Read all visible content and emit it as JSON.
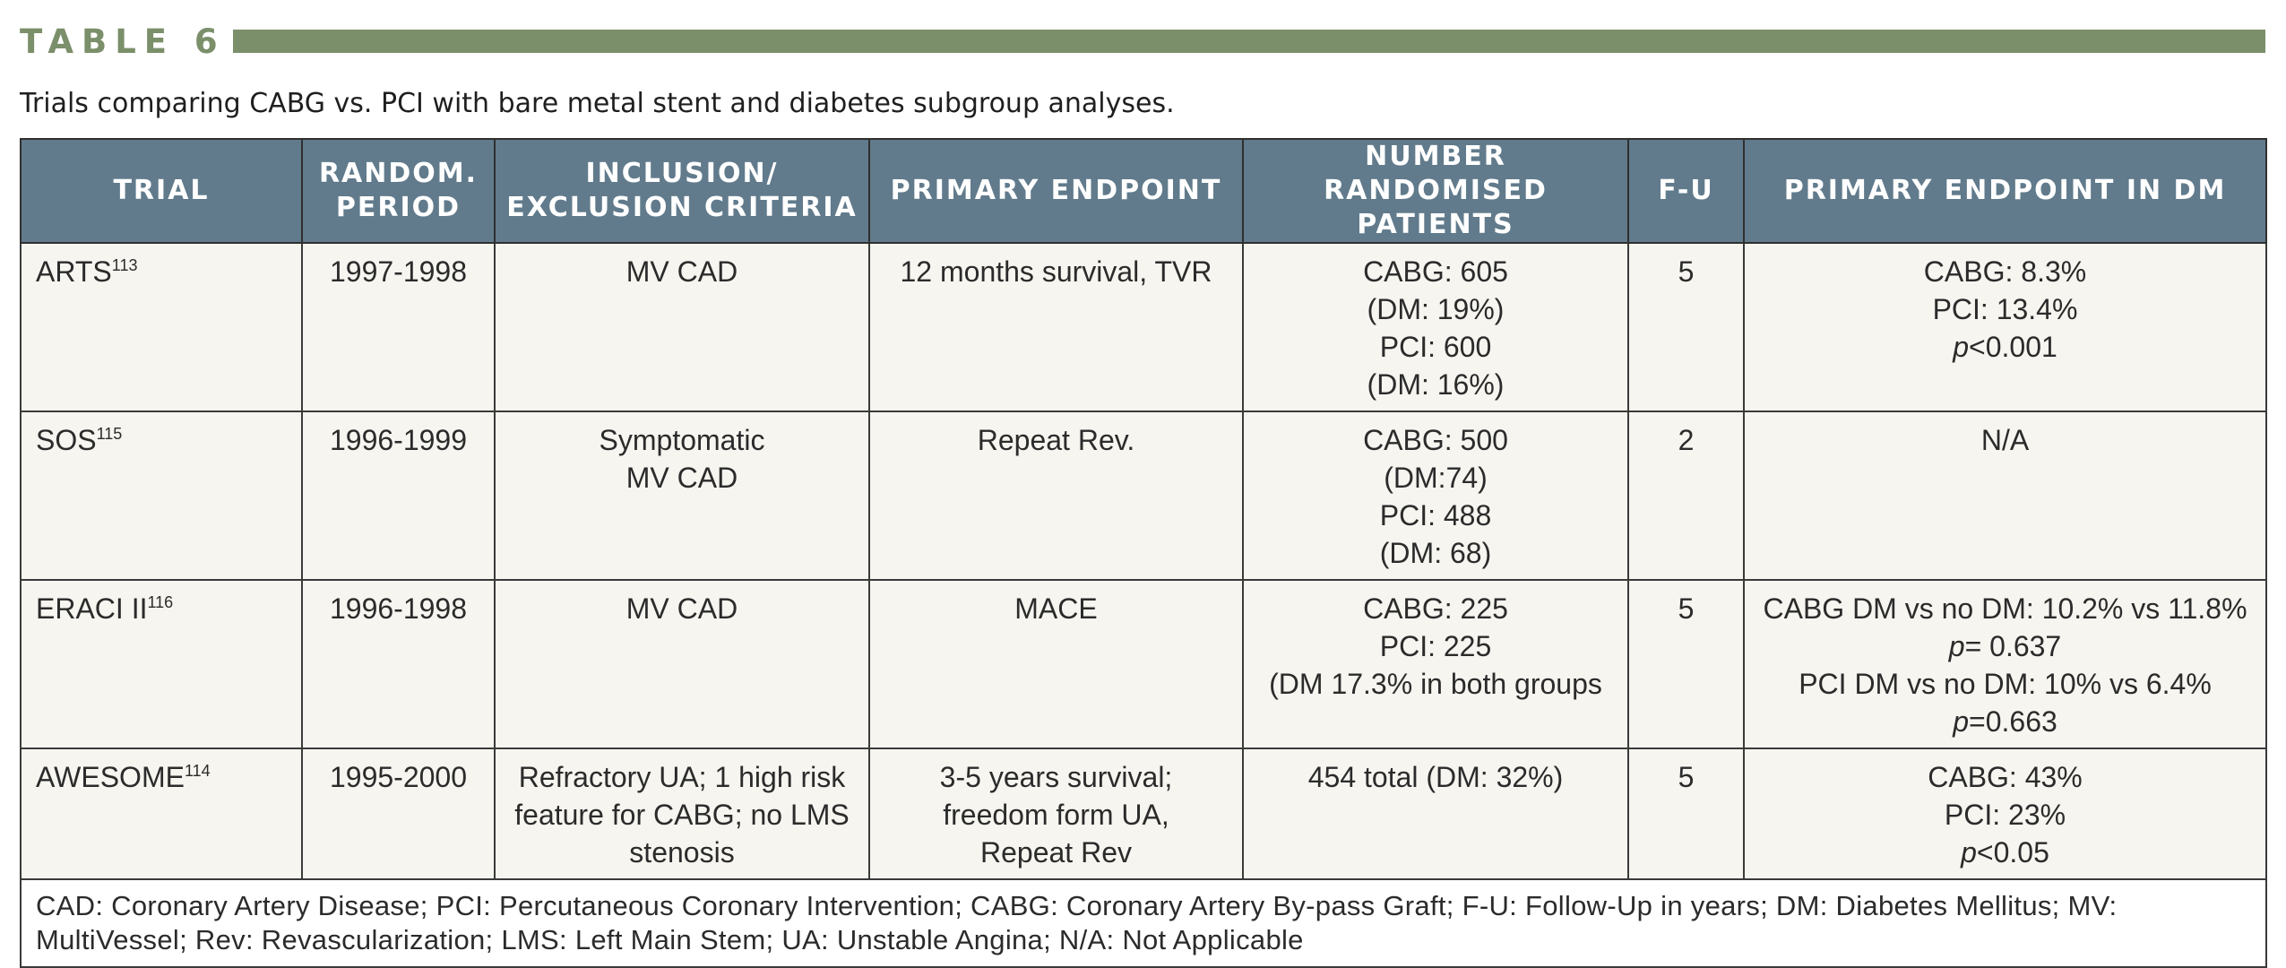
{
  "table_label": "TABLE 6",
  "caption": "Trials comparing CABG vs. PCI with bare metal stent and diabetes subgroup analyses.",
  "colors": {
    "accent": "#7b8f6a",
    "header_bg": "#617b8c",
    "cell_bg": "#f6f5f0"
  },
  "headers": {
    "trial": "TRIAL",
    "period_1": "RANDOM.",
    "period_2": "PERIOD",
    "criteria_1": "INCLUSION/",
    "criteria_2": "EXCLUSION CRITERIA",
    "endpoint": "PRIMARY ENDPOINT",
    "patients_1": "NUMBER RANDOMISED",
    "patients_2": "PATIENTS",
    "fu": "F-U",
    "dm": "PRIMARY ENDPOINT IN DM"
  },
  "rows": [
    {
      "trial": "ARTS",
      "ref": "113",
      "period": "1997-1998",
      "criteria": [
        "MV CAD"
      ],
      "endpoint": [
        "12 months survival, TVR"
      ],
      "patients": [
        "CABG: 605",
        "(DM: 19%)",
        "PCI: 600",
        "(DM: 16%)"
      ],
      "fu": "5",
      "dm_lines": [
        "CABG: 8.3%",
        "PCI: 13.4%"
      ],
      "dm_p_italic": "p",
      "dm_p_rest": "<0.001"
    },
    {
      "trial": "SOS",
      "ref": "115",
      "period": "1996-1999",
      "criteria": [
        "Symptomatic",
        "MV CAD"
      ],
      "endpoint": [
        "Repeat Rev."
      ],
      "patients": [
        "CABG: 500",
        "(DM:74)",
        "PCI: 488",
        "(DM: 68)"
      ],
      "fu": "2",
      "dm": "N/A"
    },
    {
      "trial": "ERACI II",
      "ref": "116",
      "period": "1996-1998",
      "criteria": [
        "MV CAD"
      ],
      "endpoint": [
        "MACE"
      ],
      "patients": [
        "CABG: 225",
        "PCI: 225",
        "(DM 17.3% in both groups"
      ],
      "fu": "5",
      "dm_line1": "CABG DM vs no DM: 10.2% vs 11.8%",
      "dm_p1_italic": "p",
      "dm_p1_rest": "= 0.637",
      "dm_line2": "PCI DM vs no DM: 10% vs 6.4%",
      "dm_p2_italic": "p",
      "dm_p2_rest": "=0.663"
    },
    {
      "trial": "AWESOME",
      "ref": "114",
      "period": "1995-2000",
      "criteria": [
        "Refractory UA; 1 high risk",
        "feature for CABG; no LMS",
        "stenosis"
      ],
      "endpoint": [
        "3-5 years survival;",
        "freedom form UA,",
        "Repeat Rev"
      ],
      "patients": [
        "454 total (DM: 32%)"
      ],
      "fu": "5",
      "dm_lines": [
        "CABG: 43%",
        "PCI: 23%"
      ],
      "dm_p_italic": "p",
      "dm_p_rest": "<0.05"
    }
  ],
  "footnote": "CAD: Coronary Artery Disease; PCI: Percutaneous Coronary Intervention; CABG: Coronary Artery By-pass Graft; F-U: Follow-Up in years; DM: Diabetes Mellitus; MV: MultiVessel; Rev: Revascularization; LMS: Left Main Stem; UA: Unstable Angina; N/A: Not Applicable"
}
